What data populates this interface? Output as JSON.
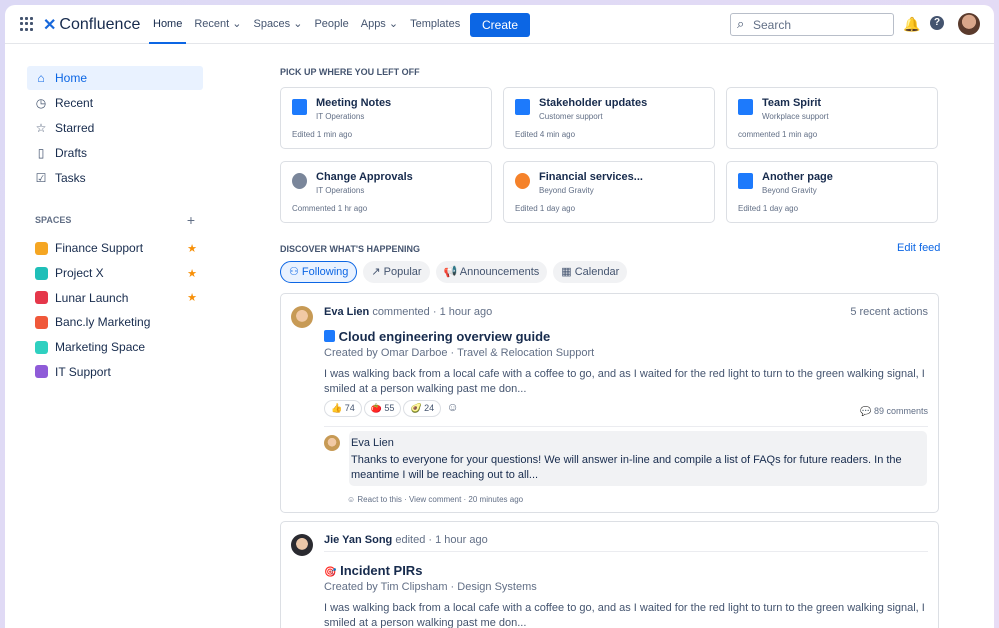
{
  "topnav": {
    "app": "Confluence",
    "items": [
      "Home",
      "Recent",
      "Spaces",
      "People",
      "Apps",
      "Templates"
    ],
    "create": "Create",
    "search_placeholder": "Search"
  },
  "sidebar": {
    "items": [
      "Home",
      "Recent",
      "Starred",
      "Drafts",
      "Tasks"
    ],
    "spaces_header": "SPACES",
    "spaces": [
      {
        "name": "Finance Support",
        "color": "#f5a623",
        "starred": true
      },
      {
        "name": "Project X",
        "color": "#1fbfb8",
        "starred": true
      },
      {
        "name": "Lunar Launch",
        "color": "#e5374a",
        "starred": true
      },
      {
        "name": "Banc.ly Marketing",
        "color": "#f0583a",
        "starred": false
      },
      {
        "name": "Marketing Space",
        "color": "#2fd0c0",
        "starred": false
      },
      {
        "name": "IT Support",
        "color": "#8f5bd8",
        "starred": false
      }
    ]
  },
  "recent": {
    "header": "PICK UP WHERE YOU LEFT OFF",
    "cards": [
      {
        "title": "Meeting Notes",
        "space": "IT Operations",
        "meta": "Edited 1 min ago"
      },
      {
        "title": "Stakeholder updates",
        "space": "Customer support",
        "meta": "Edited 4 min ago"
      },
      {
        "title": "Team Spirit",
        "space": "Workplace support",
        "meta": "commented 1 min ago"
      },
      {
        "title": "Change Approvals",
        "space": "IT Operations",
        "meta": "Commented 1 hr ago"
      },
      {
        "title": "Financial services...",
        "space": "Beyond Gravity",
        "meta": "Edited 1 day ago"
      },
      {
        "title": "Another page",
        "space": "Beyond Gravity",
        "meta": "Edited 1 day ago"
      }
    ]
  },
  "feed": {
    "header": "DISCOVER WHAT'S HAPPENING",
    "edit": "Edit feed",
    "tabs": [
      "Following",
      "Popular",
      "Announcements",
      "Calendar"
    ],
    "posts": [
      {
        "author": "Eva Lien",
        "action": "commented",
        "time": "1 hour ago",
        "recent": "5 recent actions",
        "title": "Cloud engineering overview guide",
        "created": "Created by Omar Darboe",
        "space": "Travel & Relocation Support",
        "excerpt": "I was walking back from a local cafe with a coffee to go, and as I waited for the red light to turn to the green walking signal, I smiled at a person walking past me don...",
        "reactions": [
          "👍 74",
          "🍅 55",
          "🥑 24"
        ],
        "comments": "89 comments",
        "reply": {
          "author": "Eva Lien",
          "text": "Thanks to everyone for your questions! We will answer in-line and compile a list of FAQs for future readers. In the meantime I will be reaching out to all...",
          "react": "React to this",
          "view": "View comment",
          "time": "20 minutes ago"
        }
      },
      {
        "author": "Jie Yan Song",
        "action": "edited",
        "time": "1 hour ago",
        "title": "Incident PIRs",
        "created": "Created by Tim Clipsham",
        "space": "Design Systems",
        "excerpt": "I was walking back from a local cafe with a coffee to go, and as I waited for the red light to turn to the green walking signal, I smiled at a person walking past me don..."
      }
    ]
  }
}
